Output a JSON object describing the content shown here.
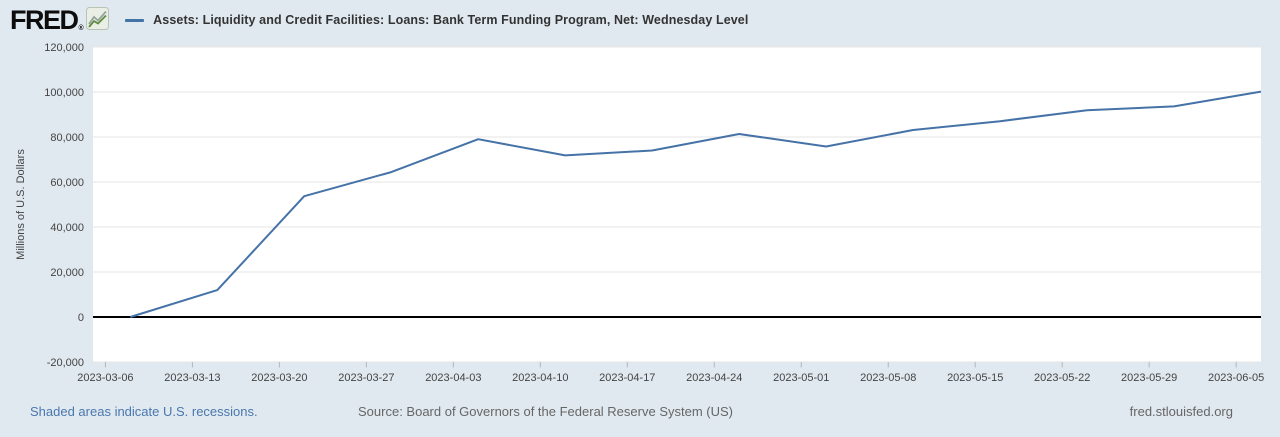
{
  "header": {
    "logo_text": "FRED",
    "logo_reg": "®",
    "logo_icon": "fred-sparkline-icon",
    "series_title": "Assets: Liquidity and Credit Facilities: Loans: Bank Term Funding Program, Net: Wednesday Level"
  },
  "colors": {
    "background": "#e1e9f0",
    "plot_background": "#ffffff",
    "series_line": "#4572a7",
    "gridline": "#e6e6e6",
    "zero_line": "#000000",
    "axis_text": "#444444",
    "tick_mark": "#b0b7bf",
    "recession_link": "#4a77ad",
    "footer_text": "#666666"
  },
  "chart_data": {
    "type": "line",
    "title": "Assets: Liquidity and Credit Facilities: Loans: Bank Term Funding Program, Net: Wednesday Level",
    "xlabel": "",
    "ylabel": "Millions of U.S. Dollars",
    "grid": "horizontal",
    "legend_position": "top-left",
    "frequency": "weekly, as of Wednesday",
    "xlim": [
      "2023-03-05",
      "2023-06-07"
    ],
    "ylim": [
      -20000,
      120000
    ],
    "x": [
      "2023-03-08",
      "2023-03-15",
      "2023-03-22",
      "2023-03-29",
      "2023-04-05",
      "2023-04-12",
      "2023-04-19",
      "2023-04-26",
      "2023-05-03",
      "2023-05-10",
      "2023-05-17",
      "2023-05-24",
      "2023-05-31",
      "2023-06-07"
    ],
    "y": [
      0,
      11943,
      53669,
      64403,
      79021,
      71837,
      73982,
      81327,
      75778,
      83101,
      87006,
      91907,
      93615,
      100161
    ],
    "x_tick_labels": [
      "2023-03-06",
      "2023-03-13",
      "2023-03-20",
      "2023-03-27",
      "2023-04-03",
      "2023-04-10",
      "2023-04-17",
      "2023-04-24",
      "2023-05-01",
      "2023-05-08",
      "2023-05-15",
      "2023-05-22",
      "2023-05-29",
      "2023-06-05"
    ],
    "y_ticks": [
      -20000,
      0,
      20000,
      40000,
      60000,
      80000,
      100000,
      120000
    ]
  },
  "footer": {
    "recession_note": "Shaded areas indicate U.S. recessions.",
    "source": "Source: Board of Governors of the Federal Reserve System (US)",
    "site": "fred.stlouisfed.org"
  }
}
